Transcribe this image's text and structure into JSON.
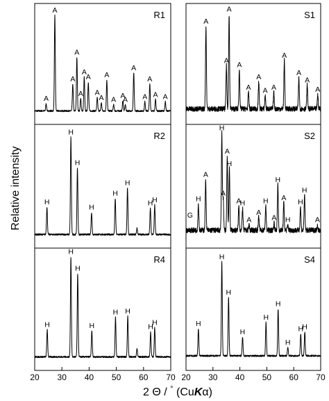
{
  "chart_data": {
    "type": "line",
    "x_axis": {
      "title_parts": [
        "2 ",
        "Θ",
        " / ",
        "°",
        " (Cu",
        "K",
        "α)"
      ],
      "range": [
        20,
        70
      ],
      "ticks": [
        20,
        30,
        40,
        50,
        60,
        70
      ]
    },
    "y_axis": {
      "title": "Relative intensity"
    },
    "panels": [
      {
        "name": "R1",
        "column": "left",
        "row": 0,
        "baseline": 0.05,
        "noise": 0.008,
        "peaks": [
          {
            "x": 24.2,
            "y": 0.07,
            "label": "A"
          },
          {
            "x": 27.4,
            "y": 0.93,
            "label": "A"
          },
          {
            "x": 34.0,
            "y": 0.26,
            "label": "A"
          },
          {
            "x": 35.5,
            "y": 0.52,
            "label": "A"
          },
          {
            "x": 36.9,
            "y": 0.12,
            "label": "A"
          },
          {
            "x": 38.2,
            "y": 0.33,
            "label": "A"
          },
          {
            "x": 39.7,
            "y": 0.28,
            "label": "A"
          },
          {
            "x": 43.0,
            "y": 0.13,
            "label": "A"
          },
          {
            "x": 44.5,
            "y": 0.08,
            "label": "A"
          },
          {
            "x": 46.5,
            "y": 0.3,
            "label": "A"
          },
          {
            "x": 49.0,
            "y": 0.06,
            "label": "A"
          },
          {
            "x": 52.4,
            "y": 0.1,
            "label": "A"
          },
          {
            "x": 53.3,
            "y": 0.06,
            "label": "A"
          },
          {
            "x": 56.4,
            "y": 0.37,
            "label": "A"
          },
          {
            "x": 60.5,
            "y": 0.09,
            "label": "A"
          },
          {
            "x": 62.3,
            "y": 0.26,
            "label": "A"
          },
          {
            "x": 64.4,
            "y": 0.11,
            "label": "A"
          },
          {
            "x": 68.0,
            "y": 0.09,
            "label": "A"
          }
        ]
      },
      {
        "name": "R2",
        "column": "left",
        "row": 1,
        "baseline": 0.05,
        "noise": 0.008,
        "peaks": [
          {
            "x": 24.5,
            "y": 0.26,
            "label": "H"
          },
          {
            "x": 33.3,
            "y": 0.92,
            "label": "H"
          },
          {
            "x": 35.7,
            "y": 0.63,
            "label": "H"
          },
          {
            "x": 40.9,
            "y": 0.21,
            "label": "H"
          },
          {
            "x": 49.6,
            "y": 0.34,
            "label": "H"
          },
          {
            "x": 54.1,
            "y": 0.44,
            "label": "H"
          },
          {
            "x": 57.6,
            "y": 0.06,
            "label": ""
          },
          {
            "x": 62.5,
            "y": 0.25,
            "label": "H"
          },
          {
            "x": 64.1,
            "y": 0.28,
            "label": "H"
          }
        ]
      },
      {
        "name": "R4",
        "column": "left",
        "row": 2,
        "baseline": 0.05,
        "noise": 0.008,
        "peaks": [
          {
            "x": 24.6,
            "y": 0.26,
            "label": "H"
          },
          {
            "x": 33.3,
            "y": 0.96,
            "label": "H"
          },
          {
            "x": 35.8,
            "y": 0.8,
            "label": "H"
          },
          {
            "x": 41.0,
            "y": 0.25,
            "label": "H"
          },
          {
            "x": 49.7,
            "y": 0.38,
            "label": "H"
          },
          {
            "x": 54.2,
            "y": 0.39,
            "label": "H"
          },
          {
            "x": 57.6,
            "y": 0.08,
            "label": ""
          },
          {
            "x": 62.6,
            "y": 0.24,
            "label": "H"
          },
          {
            "x": 64.1,
            "y": 0.28,
            "label": "H"
          }
        ]
      },
      {
        "name": "S1",
        "column": "right",
        "row": 0,
        "baseline": 0.07,
        "noise": 0.025,
        "peaks": [
          {
            "x": 27.4,
            "y": 0.8,
            "label": "A"
          },
          {
            "x": 35.0,
            "y": 0.42,
            "label": "A"
          },
          {
            "x": 36.0,
            "y": 0.92,
            "label": "A"
          },
          {
            "x": 39.8,
            "y": 0.38,
            "label": "A"
          },
          {
            "x": 43.2,
            "y": 0.16,
            "label": "A"
          },
          {
            "x": 47.0,
            "y": 0.26,
            "label": "A"
          },
          {
            "x": 49.4,
            "y": 0.13,
            "label": "A"
          },
          {
            "x": 52.6,
            "y": 0.16,
            "label": "A"
          },
          {
            "x": 56.5,
            "y": 0.47,
            "label": "A"
          },
          {
            "x": 61.9,
            "y": 0.3,
            "label": "A"
          },
          {
            "x": 65.0,
            "y": 0.23,
            "label": "A"
          },
          {
            "x": 68.9,
            "y": 0.14,
            "label": "A"
          }
        ]
      },
      {
        "name": "S2",
        "column": "right",
        "row": 1,
        "baseline": 0.09,
        "noise": 0.025,
        "peaks": [
          {
            "x": 24.6,
            "y": 0.25,
            "label": "H"
          },
          {
            "x": 27.3,
            "y": 0.48,
            "label": "A"
          },
          {
            "x": 33.3,
            "y": 0.92,
            "label": "H"
          },
          {
            "x": 33.8,
            "y": 0.3,
            "label": "A"
          },
          {
            "x": 35.3,
            "y": 0.7,
            "label": "A"
          },
          {
            "x": 36.1,
            "y": 0.58,
            "label": "H"
          },
          {
            "x": 39.6,
            "y": 0.23,
            "label": "A"
          },
          {
            "x": 41.0,
            "y": 0.21,
            "label": "H"
          },
          {
            "x": 43.4,
            "y": 0.05,
            "label": "A"
          },
          {
            "x": 47.0,
            "y": 0.12,
            "label": "A"
          },
          {
            "x": 49.6,
            "y": 0.23,
            "label": "H"
          },
          {
            "x": 52.7,
            "y": 0.07,
            "label": "A"
          },
          {
            "x": 54.1,
            "y": 0.43,
            "label": "H"
          },
          {
            "x": 56.3,
            "y": 0.26,
            "label": "A"
          },
          {
            "x": 57.8,
            "y": 0.05,
            "label": "H"
          },
          {
            "x": 62.5,
            "y": 0.22,
            "label": "H"
          },
          {
            "x": 64.0,
            "y": 0.33,
            "label": "H"
          },
          {
            "x": 68.8,
            "y": 0.05,
            "label": "A"
          },
          {
            "x": 21.5,
            "y": 0.0,
            "label": "G"
          }
        ]
      },
      {
        "name": "S4",
        "column": "right",
        "row": 2,
        "baseline": 0.06,
        "noise": 0.008,
        "peaks": [
          {
            "x": 24.6,
            "y": 0.26,
            "label": "H"
          },
          {
            "x": 33.3,
            "y": 0.9,
            "label": "H"
          },
          {
            "x": 35.8,
            "y": 0.56,
            "label": "H"
          },
          {
            "x": 41.0,
            "y": 0.18,
            "label": "H"
          },
          {
            "x": 49.7,
            "y": 0.32,
            "label": "H"
          },
          {
            "x": 54.2,
            "y": 0.45,
            "label": "H"
          },
          {
            "x": 57.8,
            "y": 0.08,
            "label": "H"
          },
          {
            "x": 62.6,
            "y": 0.21,
            "label": "H"
          },
          {
            "x": 64.1,
            "y": 0.23,
            "label": "H"
          }
        ]
      }
    ]
  }
}
